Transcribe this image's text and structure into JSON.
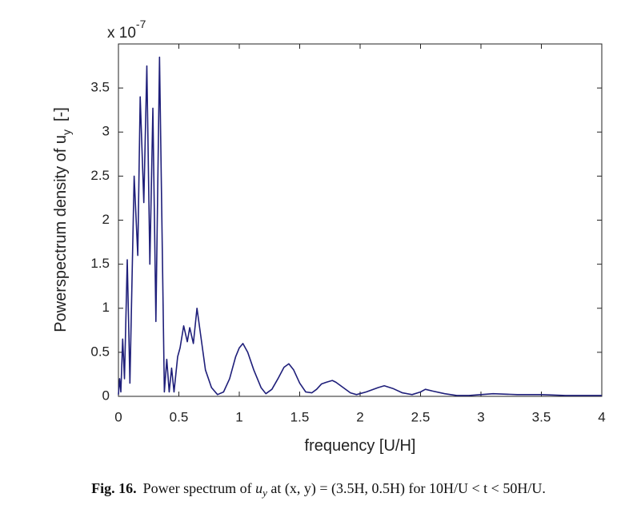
{
  "chart_data": {
    "type": "line",
    "xlabel": "frequency [U/H]",
    "ylabel": {
      "main": "Powerspectrum density of u",
      "sub": "y",
      "unit": "[-]"
    },
    "y_multiplier": {
      "base": "x 10",
      "exponent": "-7"
    },
    "xlim": [
      0,
      4
    ],
    "ylim": [
      0,
      4
    ],
    "xticks": [
      0,
      0.5,
      1,
      1.5,
      2,
      2.5,
      3,
      3.5,
      4
    ],
    "yticks": [
      0,
      0.5,
      1,
      1.5,
      2,
      2.5,
      3,
      3.5
    ],
    "series": [
      {
        "color": "#1f1f7a",
        "x": [
          0,
          0.01,
          0.02,
          0.035,
          0.05,
          0.073,
          0.095,
          0.13,
          0.16,
          0.18,
          0.21,
          0.235,
          0.26,
          0.285,
          0.31,
          0.34,
          0.38,
          0.4,
          0.42,
          0.44,
          0.46,
          0.49,
          0.51,
          0.54,
          0.57,
          0.59,
          0.62,
          0.65,
          0.68,
          0.72,
          0.77,
          0.82,
          0.87,
          0.92,
          0.97,
          1.0,
          1.03,
          1.07,
          1.12,
          1.18,
          1.22,
          1.27,
          1.32,
          1.37,
          1.41,
          1.45,
          1.5,
          1.55,
          1.6,
          1.64,
          1.68,
          1.72,
          1.77,
          1.8,
          1.86,
          1.92,
          1.97,
          2.05,
          2.15,
          2.2,
          2.27,
          2.35,
          2.43,
          2.5,
          2.54,
          2.6,
          2.7,
          2.8,
          2.9,
          3.0,
          3.1,
          3.3,
          3.5,
          3.7,
          4.0
        ],
        "values": [
          0.02,
          0.2,
          0.05,
          0.65,
          0.2,
          1.55,
          0.15,
          2.5,
          1.6,
          3.4,
          2.2,
          3.75,
          1.5,
          3.27,
          0.85,
          3.85,
          0.05,
          0.42,
          0.05,
          0.32,
          0.05,
          0.45,
          0.55,
          0.8,
          0.62,
          0.78,
          0.6,
          1.0,
          0.7,
          0.3,
          0.1,
          0.02,
          0.05,
          0.2,
          0.45,
          0.55,
          0.6,
          0.5,
          0.3,
          0.1,
          0.03,
          0.08,
          0.2,
          0.33,
          0.37,
          0.3,
          0.15,
          0.05,
          0.04,
          0.08,
          0.14,
          0.16,
          0.18,
          0.16,
          0.1,
          0.04,
          0.02,
          0.05,
          0.1,
          0.12,
          0.09,
          0.04,
          0.02,
          0.05,
          0.08,
          0.06,
          0.03,
          0.01,
          0.01,
          0.02,
          0.03,
          0.02,
          0.02,
          0.01,
          0.01
        ]
      }
    ]
  },
  "caption": {
    "label": "Fig. 16.",
    "text1": "Power spectrum of ",
    "var": "u",
    "sub": "y",
    "text2": " at (x, y) = (3.5H, 0.5H) for 10H/U < t < 50H/U."
  }
}
